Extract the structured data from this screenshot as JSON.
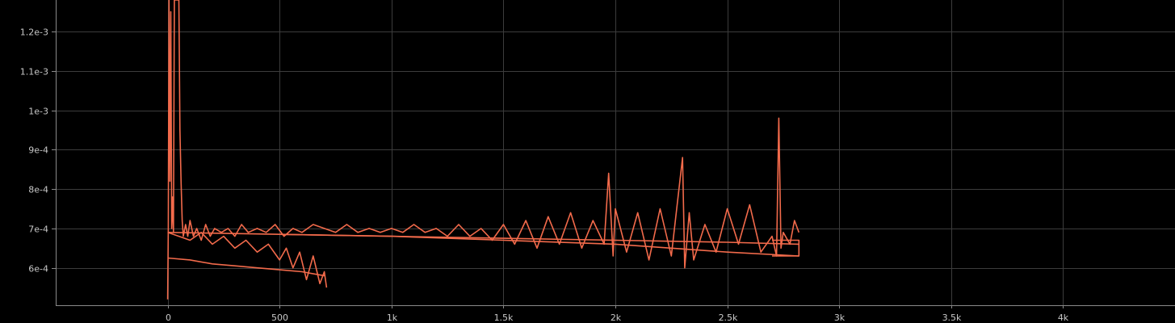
{
  "chart_data": {
    "type": "line",
    "title": "",
    "xlabel": "",
    "ylabel": "",
    "xlim": [
      -500,
      4500
    ],
    "ylim": [
      0.000505,
      0.00128
    ],
    "grid": true,
    "x_ticks": [
      0,
      500,
      1000,
      1500,
      2000,
      2500,
      3000,
      3500,
      4000
    ],
    "x_tick_labels": [
      "0",
      "500",
      "1k",
      "1.5k",
      "2k",
      "2.5k",
      "3k",
      "3.5k",
      "4k"
    ],
    "y_ticks": [
      0.0006,
      0.0007,
      0.0008,
      0.0009,
      0.001,
      0.0011,
      0.0012
    ],
    "y_tick_labels": [
      "6e-4",
      "7e-4",
      "8e-4",
      "9e-4",
      "1e-3",
      "1.1e-3",
      "1.2e-3"
    ],
    "colors": {
      "background": "#000000",
      "series": "#f26a4b",
      "grid": "#3c3c3c",
      "axis": "#8a8a8a",
      "tick_text": "#c8c8c8"
    },
    "series": [
      {
        "x": [
          0,
          3,
          6,
          10,
          14,
          18,
          22,
          26,
          30,
          35,
          40,
          45,
          50,
          55,
          60,
          65,
          70,
          80,
          90,
          100,
          115,
          130,
          150,
          170,
          190,
          210,
          240,
          270,
          300,
          330,
          360,
          400,
          440,
          480,
          520,
          560,
          600,
          650,
          700,
          750,
          800,
          850,
          900,
          950,
          1000,
          1050,
          1100,
          1150,
          1200,
          1250,
          1300,
          1350,
          1400,
          1450,
          1500,
          1550,
          1600,
          1650,
          1700,
          1750,
          1800,
          1850,
          1900,
          1950,
          1970,
          1990,
          2000,
          2050,
          2100,
          2150,
          2200,
          2250,
          2300,
          2310,
          2330,
          2350,
          2400,
          2450,
          2500,
          2550,
          2600,
          2650,
          2700,
          2720,
          2730,
          2740,
          2750,
          2780,
          2800,
          2820
        ],
        "y": [
          0.00052,
          0.0007,
          0.0013,
          0.00082,
          0.00125,
          0.0007,
          0.00078,
          0.00069,
          0.0013,
          0.0013,
          0.0013,
          0.0013,
          0.0013,
          0.00095,
          0.00082,
          0.00072,
          0.00068,
          0.00071,
          0.00068,
          0.00072,
          0.00068,
          0.0007,
          0.00067,
          0.00071,
          0.00068,
          0.0007,
          0.00069,
          0.0007,
          0.00068,
          0.00071,
          0.00069,
          0.0007,
          0.00069,
          0.00071,
          0.00068,
          0.0007,
          0.00069,
          0.00071,
          0.0007,
          0.00069,
          0.00071,
          0.00069,
          0.0007,
          0.00069,
          0.0007,
          0.00069,
          0.00071,
          0.00069,
          0.0007,
          0.00068,
          0.00071,
          0.00068,
          0.0007,
          0.00067,
          0.00071,
          0.00066,
          0.00072,
          0.00065,
          0.00073,
          0.00066,
          0.00074,
          0.00065,
          0.00072,
          0.00066,
          0.00084,
          0.00063,
          0.00075,
          0.00064,
          0.00074,
          0.00062,
          0.00075,
          0.00063,
          0.00088,
          0.0006,
          0.00074,
          0.00062,
          0.00071,
          0.00064,
          0.00075,
          0.00066,
          0.00076,
          0.00064,
          0.00068,
          0.00063,
          0.00098,
          0.00065,
          0.00069,
          0.00066,
          0.00072,
          0.00069
        ]
      },
      {
        "x": [
          0,
          50,
          100,
          150,
          200,
          250,
          300,
          350,
          400,
          450,
          500,
          530,
          560,
          590,
          620,
          650,
          680,
          700,
          710
        ],
        "y": [
          0.00069,
          0.00068,
          0.00067,
          0.00069,
          0.00066,
          0.00068,
          0.00065,
          0.00067,
          0.00064,
          0.00066,
          0.00062,
          0.00065,
          0.0006,
          0.00064,
          0.00057,
          0.00063,
          0.00056,
          0.00059,
          0.00055
        ]
      },
      {
        "x": [
          0,
          100,
          200,
          300,
          400,
          500,
          600,
          700
        ],
        "y": [
          0.000625,
          0.00062,
          0.00061,
          0.000605,
          0.0006,
          0.000595,
          0.00059,
          0.00058
        ]
      },
      {
        "x": [
          0,
          500,
          1000,
          1500,
          2000,
          2500,
          2820
        ],
        "y": [
          0.00069,
          0.000685,
          0.00068,
          0.000675,
          0.00067,
          0.000665,
          0.00066
        ]
      },
      {
        "x": [
          500,
          1000,
          1500,
          2000,
          2500,
          2820
        ],
        "y": [
          0.000685,
          0.00068,
          0.00067,
          0.00066,
          0.00064,
          0.00063
        ]
      },
      {
        "x": [
          2700,
          2820,
          2820,
          2700
        ],
        "y": [
          0.00067,
          0.00067,
          0.00063,
          0.00063
        ]
      }
    ]
  }
}
